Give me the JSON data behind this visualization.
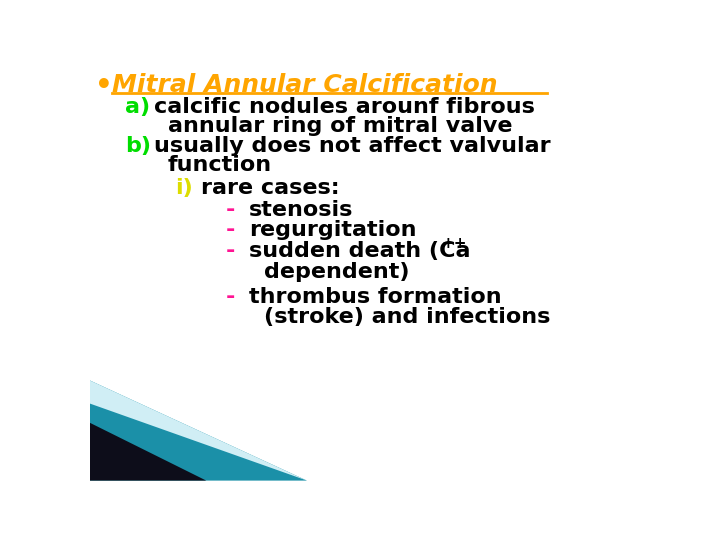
{
  "bg_color": "#ffffff",
  "bullet_color": "#FFA500",
  "title_text": "Mitral Annular Calcification",
  "title_color": "#FFA500",
  "a_label": "a)",
  "a_color": "#00DD00",
  "b_label": "b)",
  "b_color": "#00DD00",
  "i_label": "i)",
  "i_color": "#DDDD00",
  "dash_color": "#FF1493",
  "item_color": "#000000",
  "font_family": "Comic Sans MS",
  "corner_color_teal": "#1B90A8",
  "corner_color_dark": "#0d0d1a",
  "corner_color_light": "#d0eef5",
  "title_fontsize": 18,
  "body_fontsize": 16
}
